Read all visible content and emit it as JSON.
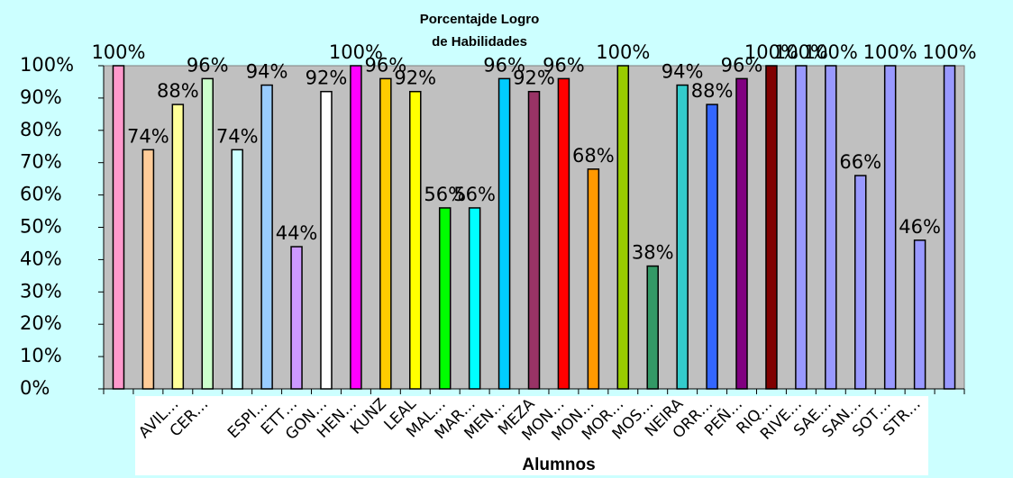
{
  "chart_data": {
    "type": "bar",
    "title": [
      "Porcentajde Logro",
      "de Habilidades"
    ],
    "x_label": "Alumnos",
    "categories": [
      null,
      null,
      "AVIL…",
      "CER…",
      null,
      "ESPI…",
      "ETT…",
      "GON…",
      "HEN…",
      "KUNZ",
      "LEAL",
      "MAL…",
      "MAR…",
      "MEN…",
      "MEZA",
      "MON…",
      "MON…",
      "MOR…",
      "MOS…",
      "NEIRA",
      "ORR…",
      "PEÑ…",
      "RIQ…",
      "RIVE…",
      "SAE…",
      "SAN…",
      "SOT…",
      "STR…",
      null
    ],
    "values": [
      100,
      74,
      88,
      96,
      74,
      94,
      44,
      92,
      100,
      96,
      92,
      56,
      56,
      96,
      92,
      96,
      68,
      100,
      38,
      94,
      88,
      96,
      100,
      100,
      100,
      66,
      100,
      46,
      100
    ],
    "value_labels": [
      "100%",
      "74%",
      "88%",
      "96%",
      "74%",
      "94%",
      "44%",
      "92%",
      "100%",
      "96%",
      "92%",
      "56%",
      "56%",
      "96%",
      "92%",
      "96%",
      "68%",
      "100%",
      "38%",
      "94%",
      "88%",
      "96%",
      "100%",
      "100%",
      "100%",
      "66%",
      "100%",
      "46%",
      "100%"
    ],
    "colors": [
      "#ff99cc",
      "#ffcc99",
      "#ffff99",
      "#ccffcc",
      "#ccffff",
      "#99ccff",
      "#cc99ff",
      "#ffffff",
      "#ff00ff",
      "#ffcc00",
      "#ffff00",
      "#00ff00",
      "#00ffff",
      "#00ccff",
      "#993366",
      "#ff0000",
      "#ff9900",
      "#99cc00",
      "#339966",
      "#33cccc",
      "#3366ff",
      "#800080",
      "#800000",
      "#9999ff",
      "#9999ff",
      "#9999ff",
      "#9999ff",
      "#9999ff",
      "#9999ff"
    ],
    "ylim": [
      0,
      100
    ],
    "yticks": [
      {
        "value": 0,
        "label": "0%"
      },
      {
        "value": 10,
        "label": "10%"
      },
      {
        "value": 20,
        "label": "20%"
      },
      {
        "value": 30,
        "label": "30%"
      },
      {
        "value": 40,
        "label": "40%"
      },
      {
        "value": 50,
        "label": "50%"
      },
      {
        "value": 60,
        "label": "60%"
      },
      {
        "value": 70,
        "label": "70%"
      },
      {
        "value": 80,
        "label": "80%"
      },
      {
        "value": 90,
        "label": "90%"
      },
      {
        "value": 100,
        "label": "100%"
      }
    ]
  }
}
